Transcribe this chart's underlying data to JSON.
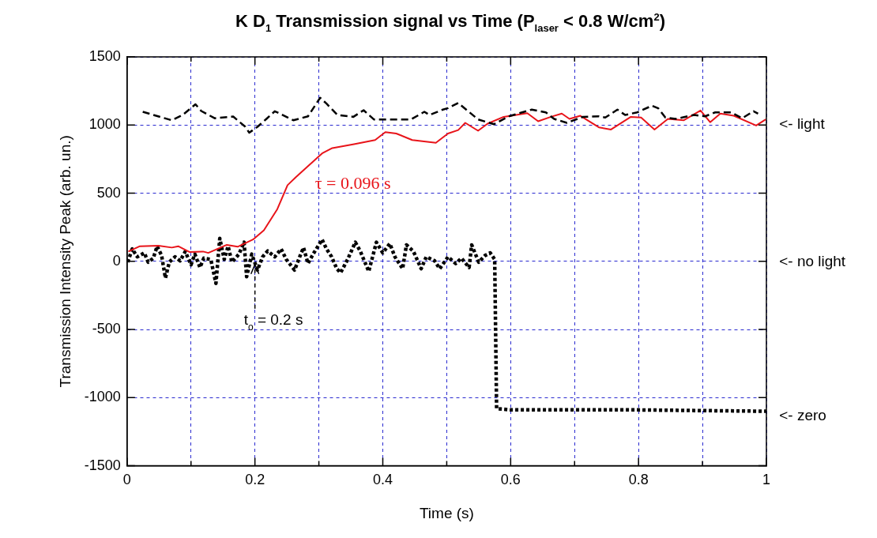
{
  "chart_data": {
    "type": "line",
    "title": "K D$_{1}$ Transmission signal vs Time (P$_{laser}$ < 0.8 W/cm$^{2}$)",
    "xlabel": "Time (s)",
    "ylabel": "Transmission Intensity Peak (arb. un.)",
    "xlim": [
      0,
      1
    ],
    "ylim": [
      -1500,
      1500
    ],
    "xticks": [
      0,
      {
        "value": 0.1,
        "label": null
      },
      0.2,
      {
        "value": 0.3,
        "label": null
      },
      0.4,
      {
        "value": 0.5,
        "label": null
      },
      0.6,
      {
        "value": 0.7,
        "label": null
      },
      0.8,
      {
        "value": 0.9,
        "label": null
      },
      1
    ],
    "yticks": [
      -1500,
      -1000,
      -500,
      0,
      500,
      1000,
      1500
    ],
    "grid": true,
    "legend": false,
    "marker": "none",
    "series": [
      {
        "color": "#000000",
        "line_style": "dashed",
        "x": [
          0.0245,
          0.07,
          0.087,
          0.107,
          0.116,
          0.137,
          0.166,
          0.185,
          0.191,
          0.204,
          0.218,
          0.231,
          0.239,
          0.26,
          0.283,
          0.302,
          0.312,
          0.329,
          0.354,
          0.37,
          0.386,
          0.409,
          0.444,
          0.465,
          0.473,
          0.494,
          0.502,
          0.518,
          0.549,
          0.574,
          0.597,
          0.633,
          0.655,
          0.668,
          0.688,
          0.713,
          0.738,
          0.748,
          0.767,
          0.779,
          0.798,
          0.821,
          0.831,
          0.842,
          0.858,
          0.877,
          0.887,
          0.904,
          0.92,
          0.945,
          0.962,
          0.98,
          0.987
        ],
        "values": [
          1097,
          1035,
          1074,
          1152,
          1103,
          1050,
          1062,
          987,
          944,
          987,
          1045,
          1101,
          1084,
          1035,
          1064,
          1200,
          1157,
          1074,
          1060,
          1109,
          1041,
          1041,
          1041,
          1097,
          1074,
          1113,
          1124,
          1162,
          1041,
          1006,
          1064,
          1113,
          1093,
          1045,
          1016,
          1060,
          1064,
          1055,
          1113,
          1074,
          1093,
          1142,
          1122,
          1055,
          1045,
          1064,
          1074,
          1064,
          1093,
          1093,
          1050,
          1101,
          1084
        ]
      },
      {
        "color": "#e8141a",
        "line_style": "solid",
        "x": [
          0.002,
          0.02,
          0.049,
          0.07,
          0.08,
          0.098,
          0.119,
          0.127,
          0.156,
          0.173,
          0.197,
          0.214,
          0.235,
          0.251,
          0.264,
          0.28,
          0.305,
          0.321,
          0.355,
          0.388,
          0.404,
          0.421,
          0.446,
          0.483,
          0.502,
          0.518,
          0.529,
          0.549,
          0.564,
          0.589,
          0.626,
          0.643,
          0.663,
          0.68,
          0.692,
          0.709,
          0.738,
          0.757,
          0.788,
          0.804,
          0.825,
          0.846,
          0.871,
          0.897,
          0.912,
          0.928,
          0.949,
          0.984,
          0.999
        ],
        "values": [
          72,
          111,
          115,
          101,
          111,
          68,
          72,
          62,
          121,
          107,
          160,
          228,
          383,
          559,
          617,
          685,
          792,
          831,
          860,
          890,
          948,
          938,
          890,
          870,
          938,
          963,
          1016,
          958,
          1010,
          1060,
          1087,
          1028,
          1060,
          1084,
          1045,
          1068,
          983,
          967,
          1060,
          1055,
          967,
          1045,
          1035,
          1107,
          1021,
          1084,
          1068,
          996,
          1041
        ]
      },
      {
        "color": "#000000",
        "line_style": "dotted",
        "x": [
          0.001,
          0.008,
          0.016,
          0.027,
          0.033,
          0.041,
          0.047,
          0.054,
          0.06,
          0.066,
          0.075,
          0.083,
          0.091,
          0.1,
          0.106,
          0.114,
          0.12,
          0.131,
          0.139,
          0.145,
          0.152,
          0.158,
          0.164,
          0.175,
          0.183,
          0.187,
          0.195,
          0.204,
          0.212,
          0.22,
          0.231,
          0.241,
          0.249,
          0.262,
          0.27,
          0.276,
          0.283,
          0.291,
          0.305,
          0.312,
          0.32,
          0.328,
          0.334,
          0.345,
          0.357,
          0.365,
          0.378,
          0.39,
          0.4,
          0.411,
          0.419,
          0.431,
          0.437,
          0.448,
          0.46,
          0.468,
          0.481,
          0.489,
          0.502,
          0.514,
          0.523,
          0.535,
          0.539,
          0.55,
          0.56,
          0.568,
          0.575,
          0.578,
          0.6,
          0.7,
          0.8,
          0.9,
          1.0
        ],
        "values": [
          -6,
          91,
          33,
          62,
          -6,
          23,
          111,
          43,
          -123,
          -6,
          33,
          4,
          72,
          -25,
          53,
          -45,
          23,
          14,
          -162,
          169,
          14,
          111,
          -6,
          53,
          140,
          -113,
          53,
          -64,
          33,
          76,
          33,
          91,
          14,
          -64,
          33,
          101,
          -16,
          53,
          160,
          91,
          33,
          -54,
          -84,
          14,
          140,
          72,
          -74,
          140,
          62,
          130,
          33,
          -54,
          121,
          72,
          -54,
          33,
          4,
          -54,
          33,
          -16,
          23,
          -45,
          121,
          -6,
          43,
          62,
          14,
          -1080,
          -1090,
          -1090,
          -1090,
          -1095,
          -1100
        ]
      }
    ],
    "annotations": [
      "τ = 0.096 s",
      {
        "text": "t$_{o}$ = 0.2 s",
        "x": 0.2,
        "y": 0
      },
      "<- light",
      "<- no light",
      "<- zero"
    ]
  }
}
